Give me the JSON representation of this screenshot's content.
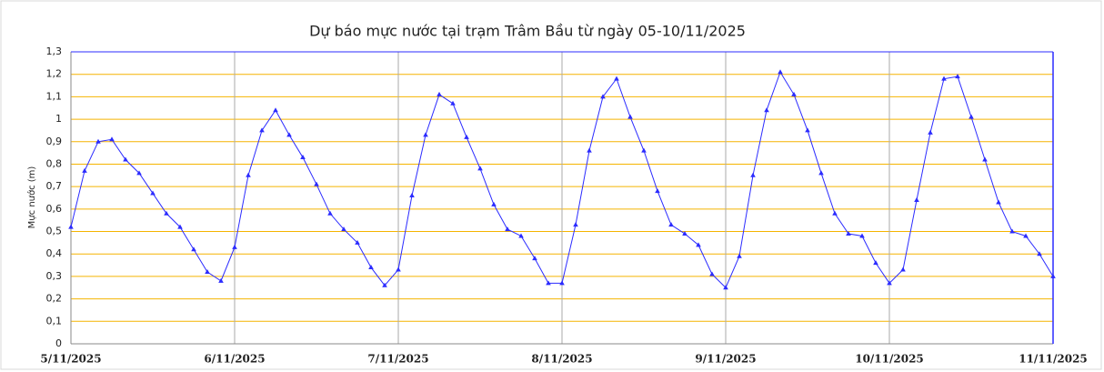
{
  "chart_data": {
    "type": "line",
    "title": "Dự báo mực nước tại trạm Trâm Bầu từ ngày 05-10/11/2025",
    "y_label": "Mực nước (m)",
    "categories": [
      "5/11/2025",
      null,
      null,
      null,
      null,
      null,
      null,
      null,
      null,
      null,
      null,
      null,
      "6/11/2025",
      null,
      null,
      null,
      null,
      null,
      null,
      null,
      null,
      null,
      null,
      null,
      "7/11/2025",
      null,
      null,
      null,
      null,
      null,
      null,
      null,
      null,
      null,
      null,
      null,
      "8/11/2025",
      null,
      null,
      null,
      null,
      null,
      null,
      null,
      null,
      null,
      null,
      null,
      "9/11/2025",
      null,
      null,
      null,
      null,
      null,
      null,
      null,
      null,
      null,
      null,
      null,
      "10/11/2025",
      null,
      null,
      null,
      null,
      null,
      null,
      null,
      null,
      null,
      null,
      null,
      "11/11/2025"
    ],
    "series": [
      {
        "name": "Mực nước",
        "color": "#2b2bff",
        "values": [
          0.52,
          0.77,
          0.9,
          0.91,
          0.82,
          0.76,
          0.67,
          0.58,
          0.52,
          0.42,
          0.32,
          0.28,
          0.43,
          0.75,
          0.95,
          1.04,
          0.93,
          0.83,
          0.71,
          0.58,
          0.51,
          0.45,
          0.34,
          0.26,
          0.33,
          0.66,
          0.93,
          1.11,
          1.07,
          0.92,
          0.78,
          0.62,
          0.51,
          0.48,
          0.38,
          0.27,
          0.27,
          0.53,
          0.86,
          1.1,
          1.18,
          1.01,
          0.86,
          0.68,
          0.53,
          0.49,
          0.44,
          0.31,
          0.25,
          0.39,
          0.75,
          1.04,
          1.21,
          1.11,
          0.95,
          0.76,
          0.58,
          0.49,
          0.48,
          0.36,
          0.27,
          0.33,
          0.64,
          0.94,
          1.18,
          1.19,
          1.01,
          0.82,
          0.63,
          0.5,
          0.48,
          0.4,
          0.3
        ]
      }
    ],
    "ylim": [
      0,
      1.3
    ],
    "yticks": [
      0,
      {
        "value": 0.1,
        "label": "0,1"
      },
      {
        "value": 0.2,
        "label": "0,2"
      },
      {
        "value": 0.3,
        "label": "0,3"
      },
      {
        "value": 0.4,
        "label": "0,4"
      },
      {
        "value": 0.5,
        "label": "0,5"
      },
      {
        "value": 0.6,
        "label": "0,6"
      },
      {
        "value": 0.7,
        "label": "0,7"
      },
      {
        "value": 0.8,
        "label": "0,8"
      },
      {
        "value": 0.9,
        "label": "0,9"
      },
      1,
      {
        "value": 1.1,
        "label": "1,1"
      },
      {
        "value": 1.2,
        "label": "1,2"
      },
      {
        "value": 1.3,
        "label": "1,3"
      }
    ],
    "grid": true,
    "grid_color": "#f5b400"
  }
}
